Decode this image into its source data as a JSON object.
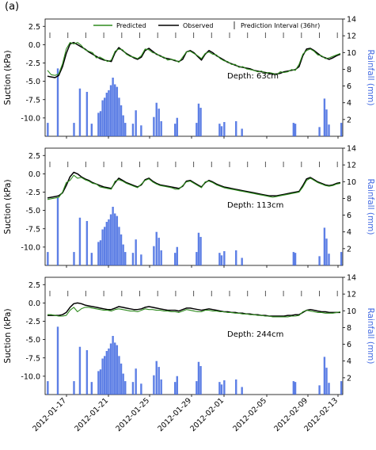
{
  "figure": {
    "panel_label": "(a)",
    "legend": {
      "predicted": "Predicted",
      "observed": "Observed",
      "interval": "Prediction Interval (36hr)"
    },
    "colors": {
      "predicted": "#2e8b1e",
      "observed": "#000000",
      "rain": "#4169e1",
      "right_axis": "#4169e1"
    }
  },
  "chart_data": [
    {
      "type": "line",
      "depth_label": "Depth: 63cm",
      "ylabel": "Suction (kPa)",
      "y2label": "Rainfall (mm)",
      "ylim": [
        -12.5,
        3.5
      ],
      "y_ticks": [
        "2.5",
        "0.0",
        "-2.5",
        "-5.0",
        "-7.5",
        "-10.0"
      ],
      "y2lim": [
        0,
        14
      ],
      "y2_ticks": [
        "2",
        "4",
        "6",
        "8",
        "10",
        "12",
        "14"
      ],
      "x_ticks": [
        "2012-01-17",
        "2012-01-21",
        "2012-01-25",
        "2012-01-29",
        "2012-02-01",
        "2012-02-05",
        "2012-02-09",
        "2012-02-13"
      ],
      "series": [
        {
          "name": "Observed",
          "values": [
            -4.3,
            -4.4,
            -4.5,
            -4.2,
            -3.0,
            -1.2,
            0.1,
            0.3,
            0.0,
            -0.3,
            -0.6,
            -1.0,
            -1.3,
            -1.6,
            -1.9,
            -2.1,
            -2.2,
            -2.3,
            -1.1,
            -0.4,
            -0.8,
            -1.2,
            -1.5,
            -1.8,
            -2.0,
            -1.7,
            -0.8,
            -0.5,
            -0.9,
            -1.3,
            -1.5,
            -1.8,
            -1.9,
            -2.0,
            -2.2,
            -2.3,
            -2.0,
            -1.0,
            -0.8,
            -1.1,
            -1.6,
            -2.1,
            -1.3,
            -0.8,
            -1.1,
            -1.5,
            -1.8,
            -2.1,
            -2.4,
            -2.6,
            -2.8,
            -3.0,
            -3.1,
            -3.2,
            -3.3,
            -3.5,
            -3.6,
            -3.7,
            -3.8,
            -3.9,
            -4.0,
            -4.0,
            -3.9,
            -3.7,
            -3.6,
            -3.5,
            -3.4,
            -3.0,
            -1.5,
            -0.6,
            -0.5,
            -0.8,
            -1.2,
            -1.6,
            -1.8,
            -2.0,
            -1.8,
            -1.5,
            -1.3
          ]
        },
        {
          "name": "Predicted",
          "values": [
            -3.5,
            -4.1,
            -4.2,
            -4.0,
            -2.6,
            -0.6,
            0.3,
            0.1,
            0.3,
            -0.1,
            -0.7,
            -0.9,
            -1.1,
            -1.8,
            -1.7,
            -2.0,
            -2.3,
            -2.1,
            -0.9,
            -0.6,
            -0.7,
            -1.3,
            -1.6,
            -1.7,
            -1.9,
            -1.5,
            -0.6,
            -0.7,
            -1.1,
            -1.2,
            -1.6,
            -1.7,
            -2.1,
            -2.0,
            -2.1,
            -2.4,
            -1.7,
            -1.0,
            -0.9,
            -1.2,
            -1.5,
            -1.9,
            -1.2,
            -1.0,
            -1.3,
            -1.4,
            -1.9,
            -2.2,
            -2.3,
            -2.7,
            -2.7,
            -3.1,
            -3.0,
            -3.3,
            -3.4,
            -3.5,
            -3.7,
            -3.6,
            -3.9,
            -3.8,
            -3.9,
            -4.1,
            -3.7,
            -3.8,
            -3.7,
            -3.4,
            -3.5,
            -2.7,
            -1.3,
            -0.8,
            -0.6,
            -0.9,
            -1.4,
            -1.5,
            -1.9,
            -1.8,
            -1.6,
            -1.4,
            -1.2
          ]
        }
      ]
    },
    {
      "type": "line",
      "depth_label": "Depth: 113cm",
      "ylabel": "Suction (kPa)",
      "y2label": "Rainfall (mm)",
      "ylim": [
        -12.5,
        3.5
      ],
      "y_ticks": [
        "2.5",
        "0.0",
        "-2.5",
        "-5.0",
        "-7.5",
        "-10.0"
      ],
      "y2lim": [
        0,
        14
      ],
      "y2_ticks": [
        "2",
        "4",
        "6",
        "8",
        "10",
        "12",
        "14"
      ],
      "x_ticks": [
        "2012-01-17",
        "2012-01-21",
        "2012-01-25",
        "2012-01-29",
        "2012-02-01",
        "2012-02-05",
        "2012-02-09",
        "2012-02-13"
      ],
      "series": [
        {
          "name": "Observed",
          "values": [
            -3.3,
            -3.2,
            -3.1,
            -3.0,
            -2.6,
            -1.6,
            -0.4,
            0.2,
            0.0,
            -0.4,
            -0.7,
            -0.9,
            -1.2,
            -1.4,
            -1.6,
            -1.8,
            -1.9,
            -2.0,
            -1.2,
            -0.6,
            -0.9,
            -1.2,
            -1.4,
            -1.6,
            -1.8,
            -1.5,
            -0.8,
            -0.6,
            -1.0,
            -1.3,
            -1.5,
            -1.6,
            -1.7,
            -1.8,
            -1.9,
            -2.0,
            -1.7,
            -1.0,
            -0.9,
            -1.2,
            -1.5,
            -1.8,
            -1.2,
            -0.9,
            -1.1,
            -1.4,
            -1.6,
            -1.8,
            -1.9,
            -2.0,
            -2.1,
            -2.2,
            -2.3,
            -2.4,
            -2.5,
            -2.6,
            -2.7,
            -2.8,
            -2.9,
            -3.0,
            -3.0,
            -3.0,
            -2.9,
            -2.8,
            -2.7,
            -2.6,
            -2.5,
            -2.4,
            -1.6,
            -0.7,
            -0.5,
            -0.8,
            -1.1,
            -1.3,
            -1.5,
            -1.6,
            -1.5,
            -1.3,
            -1.2
          ]
        },
        {
          "name": "Predicted",
          "values": [
            -3.5,
            -3.4,
            -3.3,
            -3.2,
            -2.5,
            -1.2,
            -0.9,
            -0.2,
            -0.6,
            -0.5,
            -0.8,
            -1.0,
            -1.3,
            -1.4,
            -1.8,
            -1.9,
            -2.0,
            -2.1,
            -1.0,
            -0.8,
            -1.0,
            -1.3,
            -1.5,
            -1.7,
            -1.9,
            -1.4,
            -0.9,
            -0.7,
            -1.1,
            -1.4,
            -1.6,
            -1.7,
            -1.8,
            -1.9,
            -2.1,
            -2.1,
            -1.6,
            -1.1,
            -1.0,
            -1.3,
            -1.6,
            -1.9,
            -1.1,
            -1.0,
            -1.2,
            -1.5,
            -1.7,
            -1.9,
            -2.0,
            -2.1,
            -2.2,
            -2.3,
            -2.4,
            -2.5,
            -2.6,
            -2.7,
            -2.8,
            -2.9,
            -3.0,
            -3.1,
            -3.2,
            -3.1,
            -3.0,
            -2.9,
            -2.8,
            -2.7,
            -2.6,
            -2.5,
            -1.8,
            -0.9,
            -0.6,
            -0.9,
            -1.2,
            -1.4,
            -1.6,
            -1.7,
            -1.6,
            -1.4,
            -1.3
          ]
        }
      ]
    },
    {
      "type": "line",
      "depth_label": "Depth: 244cm",
      "ylabel": "Suction (kPa)",
      "y2label": "Rainfall (mm)",
      "ylim": [
        -12.5,
        3.5
      ],
      "y_ticks": [
        "2.5",
        "0.0",
        "-2.5",
        "-5.0",
        "-7.5",
        "-10.0"
      ],
      "y2lim": [
        0,
        14
      ],
      "y2_ticks": [
        "2",
        "4",
        "6",
        "8",
        "10",
        "12",
        "14"
      ],
      "x_ticks": [
        "2012-01-17",
        "2012-01-21",
        "2012-01-25",
        "2012-01-29",
        "2012-02-01",
        "2012-02-05",
        "2012-02-09",
        "2012-02-13"
      ],
      "series": [
        {
          "name": "Observed",
          "values": [
            -1.7,
            -1.7,
            -1.7,
            -1.7,
            -1.6,
            -1.3,
            -0.6,
            -0.1,
            0.0,
            -0.1,
            -0.3,
            -0.4,
            -0.5,
            -0.6,
            -0.7,
            -0.8,
            -0.9,
            -0.9,
            -0.7,
            -0.5,
            -0.6,
            -0.7,
            -0.8,
            -0.9,
            -0.9,
            -0.8,
            -0.6,
            -0.5,
            -0.6,
            -0.7,
            -0.8,
            -0.9,
            -1.0,
            -1.0,
            -1.0,
            -1.1,
            -0.9,
            -0.7,
            -0.7,
            -0.8,
            -0.9,
            -1.0,
            -0.9,
            -0.8,
            -0.9,
            -1.0,
            -1.1,
            -1.2,
            -1.2,
            -1.3,
            -1.3,
            -1.4,
            -1.4,
            -1.5,
            -1.5,
            -1.6,
            -1.6,
            -1.7,
            -1.7,
            -1.8,
            -1.8,
            -1.8,
            -1.8,
            -1.8,
            -1.7,
            -1.7,
            -1.6,
            -1.6,
            -1.3,
            -1.0,
            -0.9,
            -1.0,
            -1.1,
            -1.2,
            -1.2,
            -1.3,
            -1.3,
            -1.3,
            -1.3
          ]
        },
        {
          "name": "Predicted",
          "values": [
            -1.6,
            -1.6,
            -1.7,
            -1.8,
            -1.8,
            -1.7,
            -1.0,
            -0.6,
            -1.2,
            -0.8,
            -0.6,
            -0.6,
            -0.7,
            -0.8,
            -0.9,
            -1.0,
            -1.0,
            -1.1,
            -0.9,
            -0.8,
            -0.9,
            -1.0,
            -1.1,
            -1.1,
            -1.2,
            -1.0,
            -0.8,
            -0.9,
            -0.9,
            -1.0,
            -1.0,
            -1.1,
            -1.1,
            -1.2,
            -1.2,
            -1.3,
            -1.1,
            -0.9,
            -1.0,
            -1.1,
            -1.2,
            -1.2,
            -1.0,
            -1.0,
            -1.1,
            -1.1,
            -1.2,
            -1.2,
            -1.3,
            -1.3,
            -1.4,
            -1.4,
            -1.5,
            -1.5,
            -1.6,
            -1.6,
            -1.7,
            -1.7,
            -1.8,
            -1.8,
            -1.9,
            -1.9,
            -1.9,
            -1.9,
            -1.9,
            -1.8,
            -1.8,
            -1.7,
            -1.2,
            -1.0,
            -1.1,
            -1.2,
            -1.3,
            -1.3,
            -1.4,
            -1.4,
            -1.4,
            -1.3,
            -1.2
          ]
        }
      ]
    }
  ],
  "rainfall_mm": [
    [
      0.9,
      1.6
    ],
    [
      4.3,
      8.1
    ],
    [
      9.8,
      1.6
    ],
    [
      11.8,
      5.7
    ],
    [
      14.2,
      5.3
    ],
    [
      15.8,
      1.5
    ],
    [
      18.1,
      2.8
    ],
    [
      18.8,
      3.0
    ],
    [
      19.5,
      4.3
    ],
    [
      20.2,
      4.6
    ],
    [
      20.9,
      5.2
    ],
    [
      21.6,
      5.5
    ],
    [
      22.3,
      6.1
    ],
    [
      23.0,
      7.0
    ],
    [
      23.7,
      6.2
    ],
    [
      24.4,
      5.9
    ],
    [
      25.1,
      4.6
    ],
    [
      25.8,
      3.7
    ],
    [
      26.5,
      2.5
    ],
    [
      27.2,
      1.6
    ],
    [
      29.8,
      1.5
    ],
    [
      30.8,
      3.1
    ],
    [
      32.6,
      1.3
    ],
    [
      36.9,
      2.3
    ],
    [
      37.8,
      4.0
    ],
    [
      38.6,
      3.3
    ],
    [
      39.4,
      1.8
    ],
    [
      44.1,
      1.5
    ],
    [
      44.8,
      2.2
    ],
    [
      51.4,
      1.6
    ],
    [
      52.1,
      3.9
    ],
    [
      52.8,
      3.4
    ],
    [
      59.2,
      1.5
    ],
    [
      59.9,
      1.2
    ],
    [
      60.8,
      1.7
    ],
    [
      64.8,
      1.8
    ],
    [
      66.8,
      0.9
    ],
    [
      84.3,
      1.6
    ],
    [
      84.9,
      1.5
    ],
    [
      93.1,
      1.1
    ],
    [
      94.8,
      4.5
    ],
    [
      95.5,
      3.2
    ],
    [
      96.3,
      1.4
    ],
    [
      100.5,
      1.6
    ]
  ]
}
